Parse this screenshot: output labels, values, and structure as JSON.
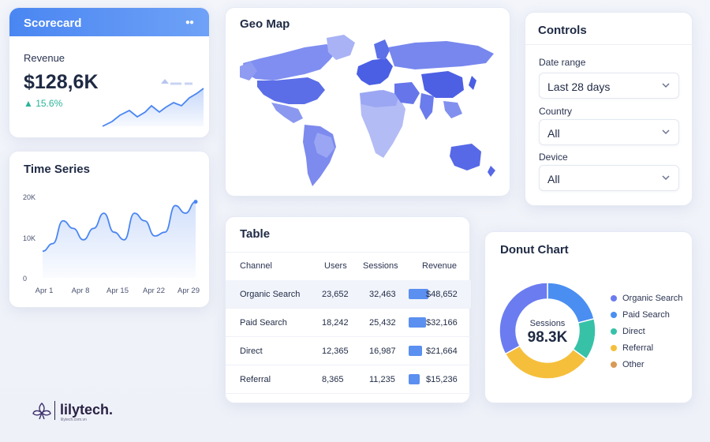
{
  "scorecard": {
    "header": "Scorecard",
    "label": "Revenue",
    "value": "$128,6K",
    "change": "▲ 15.6%"
  },
  "time_series": {
    "title": "Time Series",
    "chart_data": {
      "type": "area",
      "x_ticks": [
        "Apr 1",
        "Apr 8",
        "Apr 15",
        "Apr 22",
        "Apr 29"
      ],
      "y_ticks": [
        "20K",
        "10K",
        "0"
      ],
      "ylim": [
        0,
        22000
      ],
      "series": [
        {
          "values": [
            7000,
            9000,
            15000,
            13000,
            10000,
            13000,
            17000,
            12000,
            10000,
            17000,
            15000,
            11000,
            12000,
            19000,
            17000,
            20000
          ]
        }
      ]
    }
  },
  "geo_map": {
    "title": "Geo Map"
  },
  "controls": {
    "title": "Controls",
    "date_range_label": "Date range",
    "date_range_value": "Last 28 days",
    "country_label": "Country",
    "country_value": "All",
    "device_label": "Device",
    "device_value": "All"
  },
  "table": {
    "title": "Table",
    "columns": [
      "Channel",
      "Users",
      "Sessions",
      "Revenue"
    ],
    "rows": [
      {
        "channel": "Organic Search",
        "users": "23,652",
        "sessions": "32,463",
        "revenue": "$48,652",
        "bar": 0.62
      },
      {
        "channel": "Paid Search",
        "users": "18,242",
        "sessions": "25,432",
        "revenue": "$32,166",
        "bar": 0.56
      },
      {
        "channel": "Direct",
        "users": "12,365",
        "sessions": "16,987",
        "revenue": "$21,664",
        "bar": 0.42
      },
      {
        "channel": "Referral",
        "users": "8,365",
        "sessions": "11,235",
        "revenue": "$15,236",
        "bar": 0.35
      }
    ]
  },
  "donut": {
    "title": "Donut Chart",
    "center_label": "Sessions",
    "center_value": "98.3K",
    "legend": [
      "Organic Search",
      "Paid Search",
      "Direct",
      "Referral",
      "Other"
    ],
    "colors": [
      "#6b7cf0",
      "#4a8ef2",
      "#37c2a8",
      "#f5bf3c",
      "#d89a55"
    ],
    "chart_data": {
      "type": "pie",
      "labels": [
        "Organic Search",
        "Paid Search",
        "Direct",
        "Referral",
        "Other"
      ],
      "values": [
        33,
        21,
        14,
        22,
        10
      ]
    }
  },
  "logo": {
    "name": "lilytech.",
    "sub": "lilytech.com.vn"
  }
}
